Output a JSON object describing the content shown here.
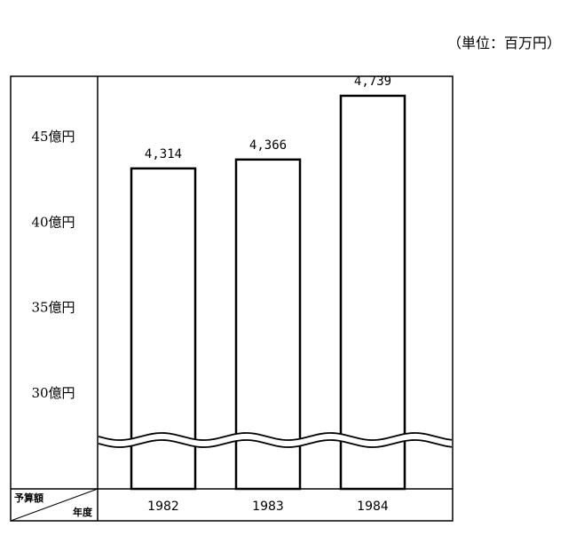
{
  "unit_note": "（単位：百万円）",
  "corner_header": {
    "top_label": "予算額",
    "bottom_label": "年度"
  },
  "colors": {
    "ink": "#000000",
    "background": "#ffffff"
  },
  "chart_data": {
    "type": "bar",
    "title": "",
    "xlabel": "年度",
    "ylabel": "予算額",
    "unit": "百万円",
    "categories": [
      "1982",
      "1983",
      "1984"
    ],
    "values": [
      4314,
      4366,
      4739
    ],
    "value_labels": [
      "4,314",
      "4,366",
      "4,739"
    ],
    "y_ticks": [
      {
        "value": 3000,
        "label": "30億円"
      },
      {
        "value": 3500,
        "label": "35億円"
      },
      {
        "value": 4000,
        "label": "40億円"
      },
      {
        "value": 4500,
        "label": "45億円"
      }
    ],
    "ylim": [
      2750,
      4900
    ],
    "axis_break": true,
    "grid": false,
    "legend": "none"
  }
}
